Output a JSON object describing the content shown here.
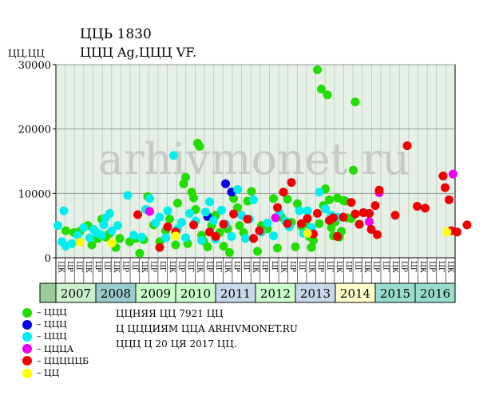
{
  "header": {
    "title": "ЦЦЬ 1830",
    "subtitle": "ЦЦЦ Ag,ЦЦЦ VF.",
    "y_unit": "ЦЦ,ЦЦ"
  },
  "watermark": "arhivmonet.ru",
  "notes": {
    "line1": "ЦЦНЯЯ ЦЦ 7921 ЦЦ",
    "line2": "Ц ЦЦЦИЯМ ЦЦА ARHIVMONET.RU",
    "line3": "ЦЦЦ Ц 20 ЦЯ 2017 ЦЦ."
  },
  "legend": [
    {
      "label": "– ЦЦЦ",
      "color": "#22dd00"
    },
    {
      "label": "– ЦЦЦ",
      "color": "#0000ee"
    },
    {
      "label": "– ЦЦЦ",
      "color": "#00eeee"
    },
    {
      "label": "– ЦЦЦА",
      "color": "#ee00ee"
    },
    {
      "label": "– ЦЦЦЦЦБ",
      "color": "#ee0000"
    },
    {
      "label": "– ЦЦ",
      "color": "#ffff00"
    }
  ],
  "chart_data": {
    "type": "scatter",
    "ylim": [
      0,
      30000
    ],
    "yticks": [
      0,
      10000,
      20000,
      30000
    ],
    "grid": true,
    "xlim": [
      0,
      10
    ],
    "years": [
      {
        "label": "2007",
        "color": "#ccf0cc"
      },
      {
        "label": "2008",
        "color": "#99cccc"
      },
      {
        "label": "2009",
        "color": "#ccffcc"
      },
      {
        "label": "2010",
        "color": "#ccffcc"
      },
      {
        "label": "2011",
        "color": "#c8d8e8"
      },
      {
        "label": "2012",
        "color": "#ccffcc"
      },
      {
        "label": "2013",
        "color": "#c8d8e8"
      },
      {
        "label": "2014",
        "color": "#ffffcc"
      },
      {
        "label": "2015",
        "color": "#99ddcc"
      },
      {
        "label": "2016",
        "color": "#99ddcc"
      }
    ],
    "month_labels": [
      "ЦК",
      "ЦР",
      "ЦГ",
      "ЦК",
      "ЦР",
      "ЦГ",
      "ЦК",
      "ЦР",
      "ЦГ",
      "ЦК",
      "ЦР",
      "ЦГ",
      "ЦК",
      "ЦР",
      "ЦГ",
      "ЦК",
      "ЦР",
      "ЦГ",
      "ЦК",
      "ЦР",
      "ЦГ",
      "ЦК",
      "ЦР",
      "ЦГ",
      "ЦК",
      "ЦР",
      "ЦГ",
      "ЦК",
      "ЦР",
      "ЦГ",
      "ЦК",
      "ЦР",
      "ЦГ",
      "ЦК",
      "ЦР",
      "ЦГ",
      "ЦК",
      "ЦР",
      "ЦГ",
      "ЦК",
      "ЦР",
      "ЦГ",
      "ЦК"
    ],
    "series": [
      {
        "color": "#22dd00",
        "points": [
          [
            0.25,
            4200
          ],
          [
            0.45,
            3900
          ],
          [
            0.6,
            4100
          ],
          [
            0.8,
            5000
          ],
          [
            0.9,
            2000
          ],
          [
            1.05,
            3000
          ],
          [
            1.15,
            6000
          ],
          [
            1.25,
            3200
          ],
          [
            1.35,
            3800
          ],
          [
            1.5,
            1600
          ],
          [
            1.6,
            3000
          ],
          [
            1.85,
            2500
          ],
          [
            2.0,
            3000
          ],
          [
            2.1,
            700
          ],
          [
            2.2,
            2800
          ],
          [
            2.3,
            9500
          ],
          [
            2.45,
            5100
          ],
          [
            2.6,
            2500
          ],
          [
            2.75,
            4200
          ],
          [
            2.85,
            6000
          ],
          [
            3.0,
            2000
          ],
          [
            3.05,
            8500
          ],
          [
            3.2,
            11500
          ],
          [
            3.25,
            12500
          ],
          [
            3.3,
            2200
          ],
          [
            3.4,
            10200
          ],
          [
            3.45,
            9300
          ],
          [
            3.5,
            7500
          ],
          [
            3.55,
            17800
          ],
          [
            3.6,
            17300
          ],
          [
            3.65,
            3500
          ],
          [
            3.7,
            2600
          ],
          [
            3.8,
            1700
          ],
          [
            3.9,
            5000
          ],
          [
            4.0,
            6600
          ],
          [
            4.1,
            3900
          ],
          [
            4.2,
            1800
          ],
          [
            4.3,
            4500
          ],
          [
            4.35,
            800
          ],
          [
            4.45,
            9200
          ],
          [
            4.55,
            7800
          ],
          [
            4.6,
            5000
          ],
          [
            4.7,
            3900
          ],
          [
            4.8,
            8800
          ],
          [
            4.9,
            10300
          ],
          [
            5.05,
            1000
          ],
          [
            5.15,
            5000
          ],
          [
            5.3,
            4500
          ],
          [
            5.45,
            9200
          ],
          [
            5.55,
            1500
          ],
          [
            5.65,
            6300
          ],
          [
            5.8,
            9100
          ],
          [
            5.9,
            5500
          ],
          [
            6.0,
            1700
          ],
          [
            6.05,
            8400
          ],
          [
            6.15,
            4900
          ],
          [
            6.25,
            5300
          ],
          [
            6.35,
            3300
          ],
          [
            6.4,
            1600
          ],
          [
            6.45,
            2700
          ],
          [
            6.55,
            29200
          ],
          [
            6.6,
            5300
          ],
          [
            6.65,
            26200
          ],
          [
            6.75,
            10700
          ],
          [
            6.8,
            25300
          ],
          [
            6.85,
            9000
          ],
          [
            6.9,
            4700
          ],
          [
            6.95,
            3400
          ],
          [
            7.0,
            5600
          ],
          [
            7.1,
            3200
          ],
          [
            7.15,
            4100
          ],
          [
            7.25,
            8800
          ],
          [
            7.3,
            6200
          ],
          [
            7.4,
            6100
          ],
          [
            7.5,
            24200
          ],
          [
            7.45,
            13600
          ],
          [
            7.2,
            8900
          ],
          [
            7.05,
            9300
          ],
          [
            6.7,
            8100
          ]
        ]
      },
      {
        "color": "#0000ee",
        "points": [
          [
            4.25,
            11500
          ],
          [
            4.4,
            10200
          ],
          [
            3.8,
            6400
          ]
        ]
      },
      {
        "color": "#00eeee",
        "points": [
          [
            0.05,
            5000
          ],
          [
            0.15,
            2500
          ],
          [
            0.2,
            7300
          ],
          [
            0.25,
            1800
          ],
          [
            0.4,
            2200
          ],
          [
            0.55,
            3500
          ],
          [
            0.7,
            4700
          ],
          [
            0.85,
            3100
          ],
          [
            0.95,
            4400
          ],
          [
            1.05,
            3800
          ],
          [
            1.15,
            3500
          ],
          [
            1.2,
            5100
          ],
          [
            1.25,
            6200
          ],
          [
            1.35,
            6900
          ],
          [
            1.4,
            4200
          ],
          [
            1.55,
            5000
          ],
          [
            1.8,
            9700
          ],
          [
            1.95,
            3500
          ],
          [
            2.15,
            3200
          ],
          [
            2.25,
            7500
          ],
          [
            2.35,
            9200
          ],
          [
            2.5,
            5400
          ],
          [
            2.6,
            6300
          ],
          [
            2.75,
            3100
          ],
          [
            2.8,
            7300
          ],
          [
            2.95,
            15900
          ],
          [
            3.05,
            4500
          ],
          [
            3.15,
            5500
          ],
          [
            3.25,
            3100
          ],
          [
            3.35,
            6900
          ],
          [
            3.5,
            5700
          ],
          [
            3.65,
            2700
          ],
          [
            3.75,
            7100
          ],
          [
            3.85,
            8700
          ],
          [
            3.95,
            5800
          ],
          [
            4.0,
            2900
          ],
          [
            4.15,
            7400
          ],
          [
            4.25,
            5200
          ],
          [
            4.4,
            3300
          ],
          [
            4.55,
            10600
          ],
          [
            4.65,
            6600
          ],
          [
            4.75,
            3000
          ],
          [
            4.85,
            6000
          ],
          [
            4.95,
            9000
          ],
          [
            5.15,
            4000
          ],
          [
            5.3,
            5400
          ],
          [
            5.45,
            3400
          ],
          [
            5.6,
            7000
          ],
          [
            5.75,
            5700
          ],
          [
            5.85,
            4800
          ],
          [
            6.1,
            7300
          ],
          [
            6.2,
            3800
          ],
          [
            6.3,
            7300
          ],
          [
            6.4,
            4700
          ],
          [
            6.6,
            10200
          ],
          [
            6.75,
            7600
          ],
          [
            6.9,
            6600
          ],
          [
            7.05,
            6300
          ]
        ]
      },
      {
        "color": "#ee00ee",
        "points": [
          [
            2.35,
            7200
          ],
          [
            5.5,
            6200
          ],
          [
            7.85,
            5600
          ],
          [
            8.1,
            10100
          ],
          [
            9.95,
            13000
          ]
        ]
      },
      {
        "color": "#ee0000",
        "points": [
          [
            2.05,
            6700
          ],
          [
            2.6,
            1600
          ],
          [
            2.8,
            4800
          ],
          [
            3.0,
            4000
          ],
          [
            3.45,
            5100
          ],
          [
            3.85,
            4000
          ],
          [
            4.0,
            3300
          ],
          [
            4.2,
            5200
          ],
          [
            4.45,
            6800
          ],
          [
            4.8,
            6000
          ],
          [
            4.95,
            3000
          ],
          [
            5.1,
            4200
          ],
          [
            5.55,
            7800
          ],
          [
            5.7,
            10200
          ],
          [
            5.8,
            5300
          ],
          [
            5.9,
            11700
          ],
          [
            6.15,
            5300
          ],
          [
            6.3,
            6100
          ],
          [
            6.45,
            3700
          ],
          [
            6.55,
            6900
          ],
          [
            6.85,
            5800
          ],
          [
            6.95,
            6200
          ],
          [
            7.05,
            3300
          ],
          [
            7.2,
            6300
          ],
          [
            7.4,
            8600
          ],
          [
            7.5,
            6800
          ],
          [
            7.6,
            5200
          ],
          [
            7.7,
            7000
          ],
          [
            7.85,
            6900
          ],
          [
            8.0,
            8100
          ],
          [
            7.9,
            4400
          ],
          [
            8.05,
            3600
          ],
          [
            8.1,
            10500
          ],
          [
            8.5,
            6600
          ],
          [
            8.8,
            17400
          ],
          [
            9.05,
            8000
          ],
          [
            9.25,
            7700
          ],
          [
            9.7,
            12700
          ],
          [
            9.75,
            10900
          ],
          [
            9.85,
            9000
          ],
          [
            9.9,
            4200
          ],
          [
            10.05,
            4000
          ],
          [
            10.3,
            5100
          ]
        ]
      },
      {
        "color": "#ffff00",
        "points": [
          [
            0.6,
            2400
          ],
          [
            1.4,
            2300
          ],
          [
            3.0,
            3400
          ],
          [
            6.3,
            3800
          ],
          [
            9.8,
            4000
          ]
        ]
      }
    ]
  }
}
